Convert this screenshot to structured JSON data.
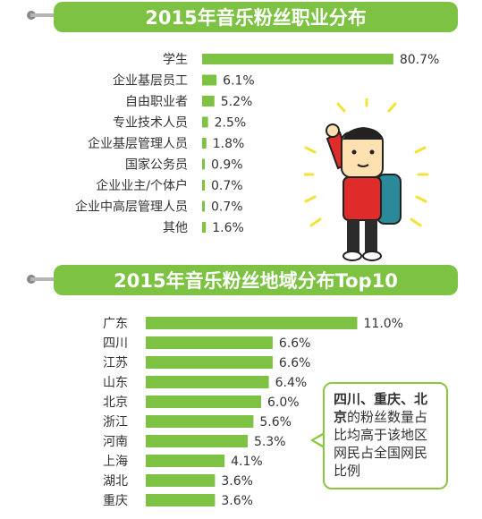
{
  "colors": {
    "accent": "#7dc242",
    "bar": "#7dc242",
    "text": "#333333"
  },
  "chart_data": [
    {
      "type": "bar",
      "orientation": "horizontal",
      "title": "2015年音乐粉丝职业分布",
      "categories": [
        "学生",
        "企业基层员工",
        "自由职业者",
        "专业技术人员",
        "企业基层管理人员",
        "国家公务员",
        "企业业主/个体户",
        "企业中高层管理人员",
        "其他"
      ],
      "values": [
        80.7,
        6.1,
        5.2,
        2.5,
        1.8,
        0.9,
        0.7,
        0.7,
        1.6
      ],
      "value_labels": [
        "80.7%",
        "6.1%",
        "5.2%",
        "2.5%",
        "1.8%",
        "0.9%",
        "0.7%",
        "0.7%",
        "1.6%"
      ],
      "unit": "%"
    },
    {
      "type": "bar",
      "orientation": "horizontal",
      "title": "2015年音乐粉丝地域分布Top10",
      "categories": [
        "广东",
        "四川",
        "江苏",
        "山东",
        "北京",
        "浙江",
        "河南",
        "上海",
        "湖北",
        "重庆"
      ],
      "values": [
        11.0,
        6.6,
        6.6,
        6.4,
        6.0,
        5.6,
        5.3,
        4.1,
        3.6,
        3.6
      ],
      "value_labels": [
        "11.0%",
        "6.6%",
        "6.6%",
        "6.4%",
        "6.0%",
        "5.6%",
        "5.3%",
        "4.1%",
        "3.6%",
        "3.6%"
      ],
      "unit": "%"
    }
  ],
  "callout": {
    "highlight": "四川、重庆、北京",
    "text": "的粉丝数量占比均高于该地区网民占全国网民比例"
  }
}
